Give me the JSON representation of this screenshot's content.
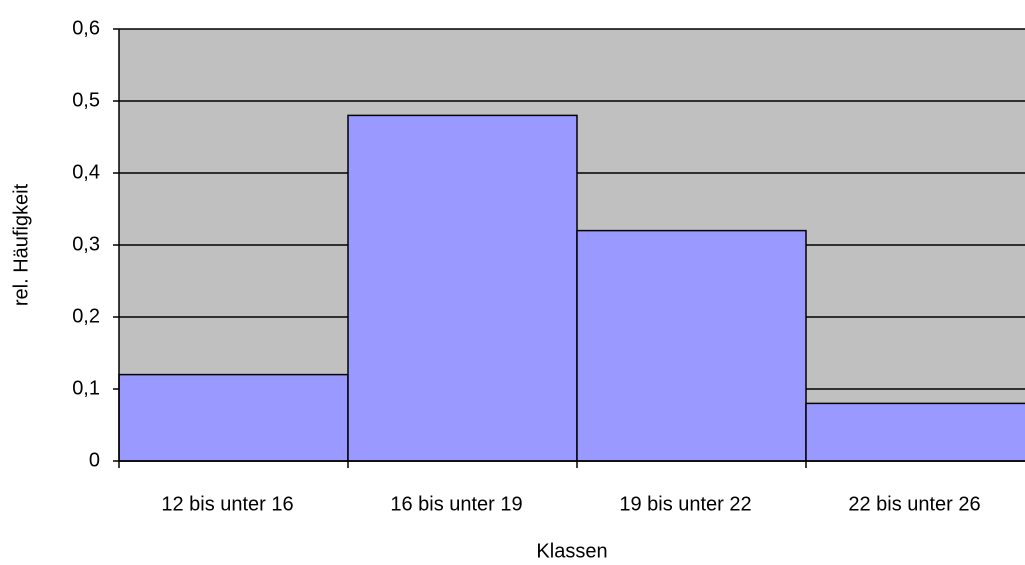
{
  "chart_data": {
    "type": "bar",
    "x_label": "Klassen",
    "y_label": "rel. Häufigkeit",
    "categories": [
      "12 bis unter 16",
      "16 bis unter 19",
      "19 bis unter 22",
      "22 bis unter 26"
    ],
    "values": [
      0.12,
      0.48,
      0.32,
      0.08
    ],
    "color": "#9999ff",
    "ylim": [
      0,
      0.6
    ],
    "yticks": [
      0,
      {
        "value": 0.1,
        "label": "0,1"
      },
      {
        "value": 0.2,
        "label": "0,2"
      },
      {
        "value": 0.3,
        "label": "0,3"
      },
      {
        "value": 0.4,
        "label": "0,4"
      },
      {
        "value": 0.5,
        "label": "0,5"
      },
      {
        "value": 0.6,
        "label": "0,6"
      }
    ],
    "grid": true
  }
}
